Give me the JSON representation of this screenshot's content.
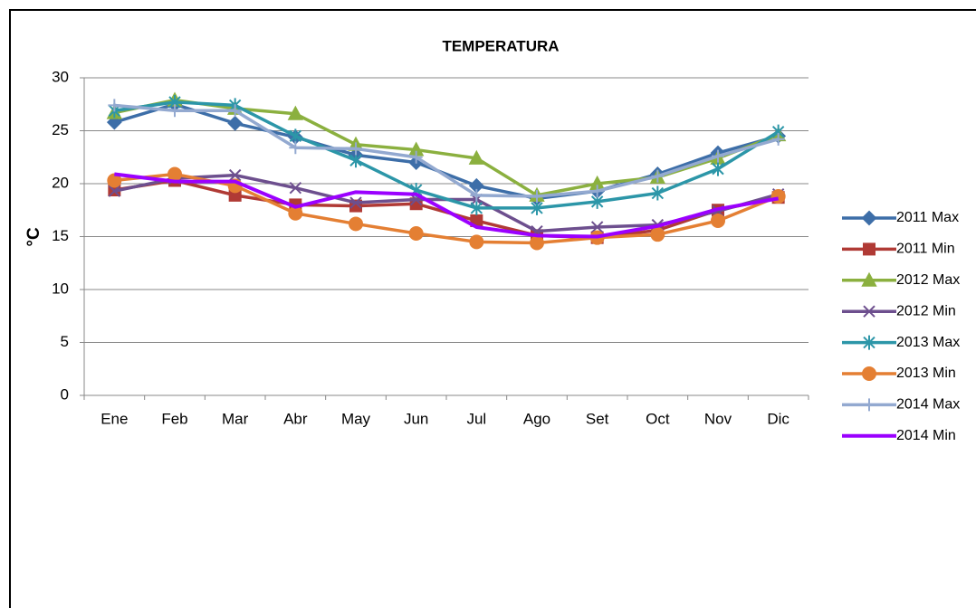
{
  "chart_data": {
    "type": "line",
    "title": "TEMPERATURA",
    "y_label": "°C",
    "categories": [
      "Ene",
      "Feb",
      "Mar",
      "Abr",
      "May",
      "Jun",
      "Jul",
      "Ago",
      "Set",
      "Oct",
      "Nov",
      "Dic"
    ],
    "ylim": [
      0,
      30
    ],
    "yticks": [
      0,
      5,
      10,
      15,
      20,
      25,
      30
    ],
    "grid": true,
    "legend": "right",
    "series": [
      {
        "name": "2011 Max",
        "color": "#3d6ea8",
        "marker": "diamond",
        "values": [
          25.8,
          27.5,
          25.7,
          24.4,
          22.7,
          22.0,
          19.8,
          18.6,
          19.3,
          20.9,
          22.9,
          24.5
        ]
      },
      {
        "name": "2011 Min",
        "color": "#b03a35",
        "marker": "square",
        "values": [
          19.4,
          20.3,
          18.9,
          18.0,
          17.9,
          18.1,
          16.5,
          15.1,
          14.9,
          15.6,
          17.5,
          18.7
        ]
      },
      {
        "name": "2012 Max",
        "color": "#8bb03f",
        "marker": "triangle",
        "values": [
          26.7,
          27.9,
          27.1,
          26.6,
          23.7,
          23.2,
          22.4,
          18.9,
          20.0,
          20.6,
          22.4,
          24.6
        ]
      },
      {
        "name": "2012 Min",
        "color": "#6d4f8e",
        "marker": "x",
        "values": [
          19.3,
          20.5,
          20.8,
          19.6,
          18.2,
          18.5,
          18.5,
          15.5,
          15.9,
          16.1,
          17.4,
          19.0
        ]
      },
      {
        "name": "2013 Max",
        "color": "#2c96a8",
        "marker": "star",
        "values": [
          26.9,
          27.7,
          27.4,
          24.5,
          22.2,
          19.4,
          17.7,
          17.7,
          18.3,
          19.1,
          21.4,
          24.9
        ]
      },
      {
        "name": "2013 Min",
        "color": "#e47f33",
        "marker": "circle",
        "values": [
          20.3,
          20.9,
          19.8,
          17.2,
          16.2,
          15.3,
          14.5,
          14.4,
          14.9,
          15.2,
          16.5,
          18.8
        ]
      },
      {
        "name": "2014 Max",
        "color": "#93a9d0",
        "marker": "plus",
        "values": [
          27.4,
          26.9,
          26.9,
          23.4,
          23.3,
          22.5,
          18.9,
          18.8,
          19.3,
          20.7,
          22.6,
          24.2
        ]
      },
      {
        "name": "2014 Min",
        "color": "#9b00ff",
        "marker": "none",
        "values": [
          20.9,
          20.2,
          20.2,
          17.8,
          19.2,
          19.0,
          15.9,
          15.1,
          15.0,
          16.0,
          17.6,
          18.6
        ]
      }
    ]
  }
}
